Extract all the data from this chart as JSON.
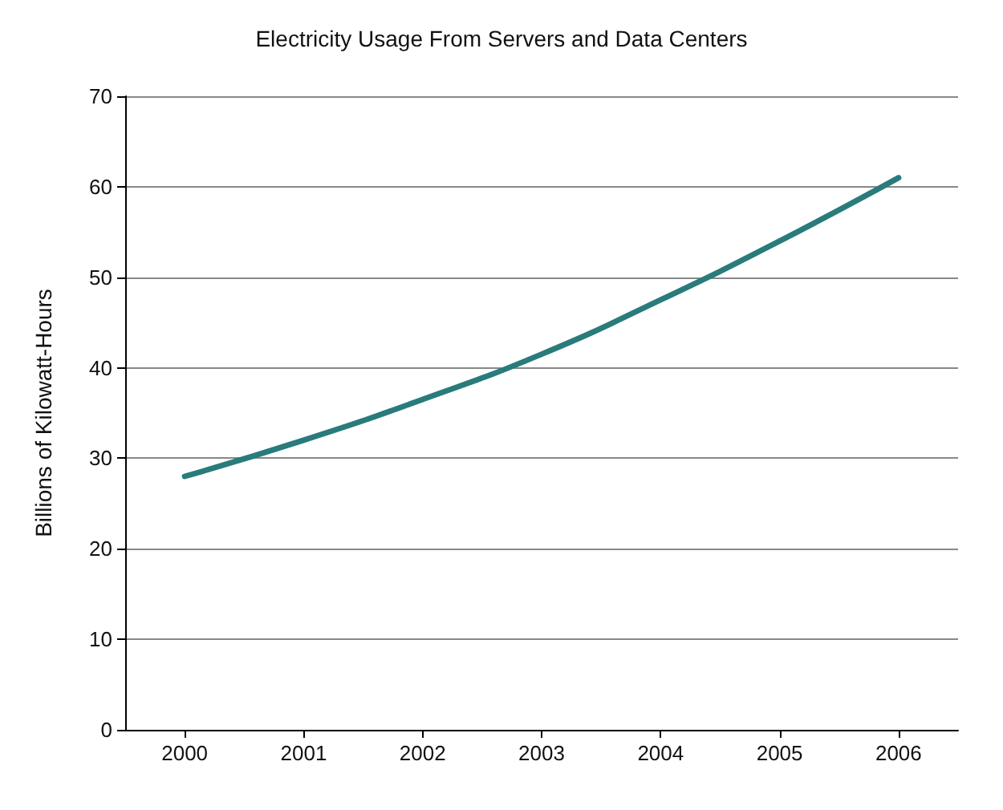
{
  "chart_data": {
    "type": "line",
    "title": "Electricity Usage From Servers and Data Centers",
    "ylabel": "Billions of Kilowatt-Hours",
    "categories": [
      "2000",
      "2001",
      "2002",
      "2003",
      "2004",
      "2005",
      "2006"
    ],
    "series": [
      {
        "color": "#2a7b7b",
        "values": [
          28,
          32,
          36.5,
          41.5,
          47.5,
          54,
          61
        ]
      }
    ],
    "ylim": [
      0,
      70
    ],
    "yticks": [
      0,
      10,
      20,
      30,
      40,
      50,
      60,
      70
    ],
    "grid": "y",
    "marker": "none",
    "line_style": "solid"
  }
}
